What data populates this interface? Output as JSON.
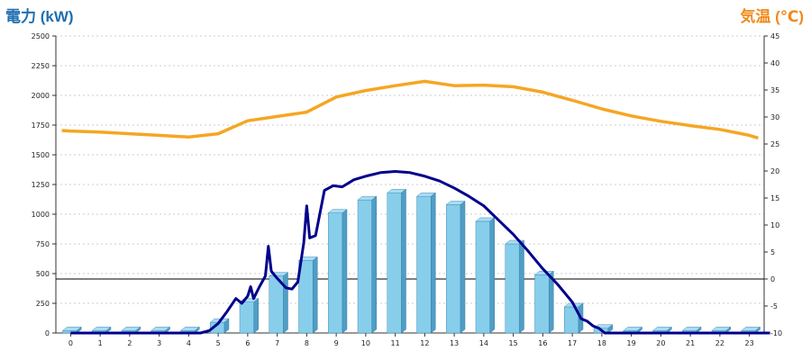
{
  "chart_data": {
    "type": "bar",
    "ylabel_left": "電力 (kW)",
    "ylabel_right": "気温 (℃)",
    "categories": [
      "0",
      "1",
      "2",
      "3",
      "4",
      "5",
      "6",
      "7",
      "8",
      "9",
      "10",
      "11",
      "12",
      "13",
      "14",
      "15",
      "16",
      "17",
      "18",
      "19",
      "20",
      "21",
      "22",
      "23"
    ],
    "y_left": {
      "min": 0,
      "max": 2500,
      "ticks": [
        0,
        250,
        500,
        750,
        1000,
        1250,
        1500,
        1750,
        2000,
        2250,
        2500
      ]
    },
    "y_right": {
      "min": -10,
      "max": 45,
      "ticks": [
        -10,
        -5,
        0,
        5,
        10,
        15,
        20,
        25,
        30,
        35,
        40,
        45
      ]
    },
    "grid": true,
    "series": [
      {
        "kind": "bar",
        "axis": "left",
        "color": "#87ceeb",
        "values": [
          20,
          20,
          20,
          20,
          20,
          90,
          260,
          480,
          610,
          1010,
          1120,
          1180,
          1150,
          1080,
          940,
          750,
          490,
          220,
          40,
          20,
          20,
          20,
          20,
          20
        ]
      },
      {
        "kind": "line",
        "axis": "left",
        "color": "#00008b",
        "points": [
          [
            0,
            0
          ],
          [
            4.4,
            0
          ],
          [
            4.7,
            20
          ],
          [
            5,
            80
          ],
          [
            5.3,
            180
          ],
          [
            5.6,
            290
          ],
          [
            5.8,
            250
          ],
          [
            6,
            310
          ],
          [
            6.1,
            390
          ],
          [
            6.2,
            290
          ],
          [
            6.4,
            390
          ],
          [
            6.6,
            480
          ],
          [
            6.7,
            730
          ],
          [
            6.8,
            520
          ],
          [
            7,
            460
          ],
          [
            7.3,
            380
          ],
          [
            7.5,
            370
          ],
          [
            7.7,
            430
          ],
          [
            7.9,
            760
          ],
          [
            8,
            1070
          ],
          [
            8.1,
            800
          ],
          [
            8.3,
            820
          ],
          [
            8.6,
            1200
          ],
          [
            8.9,
            1240
          ],
          [
            9.2,
            1230
          ],
          [
            9.6,
            1290
          ],
          [
            10,
            1320
          ],
          [
            10.5,
            1350
          ],
          [
            11,
            1360
          ],
          [
            11.5,
            1350
          ],
          [
            12,
            1320
          ],
          [
            12.5,
            1280
          ],
          [
            13,
            1220
          ],
          [
            13.5,
            1150
          ],
          [
            14,
            1070
          ],
          [
            14.5,
            950
          ],
          [
            15,
            830
          ],
          [
            15.5,
            690
          ],
          [
            16,
            540
          ],
          [
            16.5,
            410
          ],
          [
            17,
            260
          ],
          [
            17.3,
            120
          ],
          [
            17.5,
            100
          ],
          [
            17.7,
            60
          ],
          [
            17.9,
            40
          ],
          [
            18.1,
            0
          ],
          [
            23.7,
            0
          ]
        ]
      },
      {
        "kind": "line",
        "axis": "right",
        "color": "#f5a623",
        "x": [
          -0.3,
          0,
          1,
          2,
          3,
          4,
          5,
          6,
          7,
          8,
          9,
          10,
          11,
          12,
          13,
          14,
          15,
          16,
          17,
          18,
          19,
          20,
          21,
          22,
          23,
          23.3
        ],
        "values": [
          27.5,
          27.4,
          27.2,
          26.9,
          26.6,
          26.3,
          26.9,
          29.3,
          30.1,
          30.9,
          33.7,
          34.9,
          35.8,
          36.6,
          35.8,
          35.9,
          35.6,
          34.6,
          33.1,
          31.5,
          30.2,
          29.2,
          28.4,
          27.7,
          26.6,
          26.1
        ]
      }
    ]
  }
}
